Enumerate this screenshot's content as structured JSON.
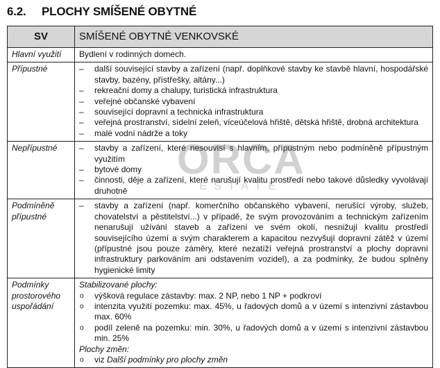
{
  "heading": {
    "number": "6.2.",
    "title": "PLOCHY SMÍŠENÉ OBYTNÉ"
  },
  "table": {
    "code": "SV",
    "name": "SMÍŠENÉ OBYTNÉ VENKOVSKÉ",
    "main_use": {
      "label": "Hlavní využití",
      "text": "Bydlení v rodinných domech."
    },
    "permitted": {
      "label": "Přípustné",
      "items": [
        "další související stavby a zařízení (např. doplňkové stavby ke stavbě hlavní, hospodářské stavby, bazény, přístřešky, altány...)",
        "rekreační domy a chalupy, turistická infrastruktura",
        "veřejné občanské vybavení",
        "související dopravní a technická infrastruktura",
        "veřejná prostranství, sídelní zeleň, víceúčelová hřiště, dětská hřiště, drobná architektura",
        "malé vodní nádrže a toky"
      ]
    },
    "not_permitted": {
      "label": "Nepřípustné",
      "items": [
        "stavby a zařízení, které nesouvisí s hlavním, přípustným nebo podmíněně přípustným využitím",
        "bytové domy",
        "činnosti, děje a zařízení, které narušují kvalitu prostředí nebo takové důsledky vyvolávají druhotně"
      ]
    },
    "conditional": {
      "label": "Podmíněně přípustné",
      "items": [
        "stavby a zařízení (např. komerčního občanského vybavení, nerušící výroby, služeb, chovatelství a pěstitelství...) v případě, že svým provozováním a technickým zařízením nenarušují užívání staveb a zařízení ve svém okolí, nesnižují kvalitu prostředí souvisejícího území a svým charakterem a kapacitou nezvyšují dopravní zátěž v území (přípustné jsou pouze záměry, které nezatíží veřejná prostranství a plochy dopravní infrastruktury parkováním ani odstavením vozidel), a za podmínky, že budou splněny hygienické limity"
      ]
    },
    "spatial": {
      "label": "Podmínky prostorového uspořádání",
      "stabilized_heading": "Stabilizované plochy:",
      "stabilized_items": [
        "výšková regulace zástavby: max. 2 NP, nebo 1 NP + podkroví",
        "intenzita využití pozemku: max. 45%, u řadových domů a v území s intenzivní zástavbou max. 60%",
        "podíl zeleně na pozemku: min. 30%, u řadových domů a v území s intenzivní zástavbou min. 25%"
      ],
      "change_heading": "Plochy změn:",
      "change_prefix": "viz ",
      "change_ref": "Další podmínky pro plochy změn"
    }
  },
  "watermark": {
    "logo": "ORCA",
    "sub": "ESTATE"
  }
}
